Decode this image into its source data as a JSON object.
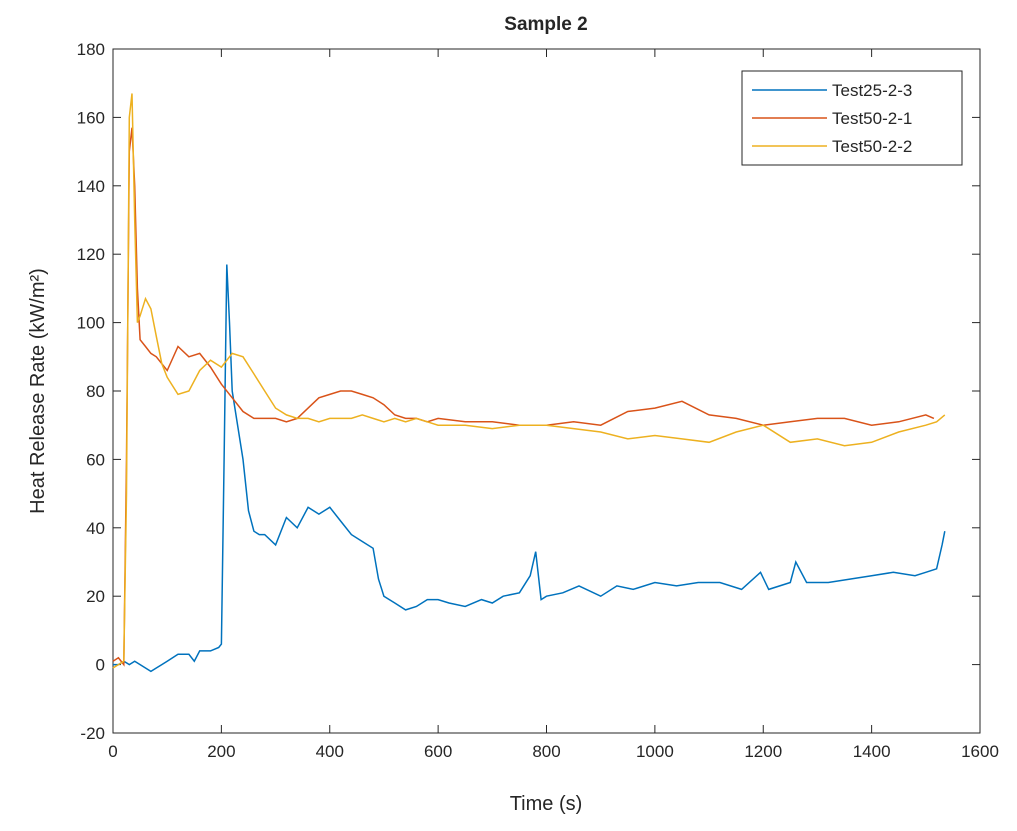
{
  "chart_data": {
    "type": "line",
    "title": "Sample 2",
    "xlabel": "Time (s)",
    "ylabel": "Heat Release Rate (kW/m²)",
    "xlim": [
      0,
      1600
    ],
    "xticks": [
      0,
      200,
      400,
      600,
      800,
      1000,
      1200,
      1400,
      1600
    ],
    "ylim": [
      -20,
      180
    ],
    "yticks": [
      -20,
      0,
      20,
      40,
      60,
      80,
      100,
      120,
      140,
      160,
      180
    ],
    "legend": "upper-right",
    "series": [
      {
        "name": "Test25-2-3",
        "color": "#0072BD",
        "x": [
          0,
          10,
          20,
          30,
          40,
          50,
          60,
          70,
          80,
          90,
          100,
          120,
          140,
          150,
          160,
          180,
          195,
          200,
          205,
          210,
          215,
          220,
          230,
          240,
          250,
          260,
          270,
          280,
          300,
          320,
          340,
          360,
          380,
          400,
          420,
          440,
          460,
          480,
          490,
          500,
          520,
          540,
          560,
          580,
          600,
          620,
          650,
          680,
          700,
          720,
          750,
          770,
          780,
          790,
          800,
          830,
          860,
          900,
          930,
          960,
          1000,
          1040,
          1080,
          1120,
          1160,
          1195,
          1210,
          1250,
          1260,
          1280,
          1320,
          1360,
          1400,
          1440,
          1480,
          1500,
          1520,
          1530,
          1535
        ],
        "values": [
          0,
          0,
          1,
          0,
          1,
          0,
          -1,
          -2,
          -1,
          0,
          1,
          3,
          3,
          1,
          4,
          4,
          5,
          6,
          60,
          117,
          100,
          80,
          70,
          60,
          45,
          39,
          38,
          38,
          35,
          43,
          40,
          46,
          44,
          46,
          42,
          38,
          36,
          34,
          25,
          20,
          18,
          16,
          17,
          19,
          19,
          18,
          17,
          19,
          18,
          20,
          21,
          26,
          33,
          19,
          20,
          21,
          23,
          20,
          23,
          22,
          24,
          23,
          24,
          24,
          22,
          27,
          22,
          24,
          30,
          24,
          24,
          25,
          26,
          27,
          26,
          27,
          28,
          35,
          39
        ]
      },
      {
        "name": "Test50-2-1",
        "color": "#D95319",
        "x": [
          0,
          10,
          20,
          25,
          30,
          35,
          40,
          45,
          50,
          60,
          70,
          80,
          100,
          120,
          140,
          160,
          180,
          200,
          220,
          240,
          260,
          280,
          300,
          320,
          340,
          360,
          380,
          400,
          420,
          440,
          460,
          480,
          500,
          520,
          540,
          560,
          580,
          600,
          650,
          700,
          750,
          800,
          850,
          900,
          950,
          1000,
          1050,
          1100,
          1150,
          1200,
          1250,
          1300,
          1350,
          1400,
          1450,
          1500,
          1515
        ],
        "values": [
          1,
          2,
          0,
          60,
          150,
          157,
          140,
          110,
          95,
          93,
          91,
          90,
          86,
          93,
          90,
          91,
          87,
          82,
          78,
          74,
          72,
          72,
          72,
          71,
          72,
          75,
          78,
          79,
          80,
          80,
          79,
          78,
          76,
          73,
          72,
          72,
          71,
          72,
          71,
          71,
          70,
          70,
          71,
          70,
          74,
          75,
          77,
          73,
          72,
          70,
          71,
          72,
          72,
          70,
          71,
          73,
          72
        ]
      },
      {
        "name": "Test50-2-2",
        "color": "#EDB120",
        "x": [
          0,
          10,
          20,
          25,
          30,
          35,
          40,
          45,
          50,
          60,
          70,
          80,
          90,
          100,
          120,
          140,
          160,
          180,
          200,
          220,
          240,
          260,
          280,
          300,
          320,
          340,
          360,
          380,
          400,
          420,
          440,
          460,
          480,
          500,
          520,
          540,
          560,
          580,
          600,
          650,
          700,
          750,
          800,
          850,
          900,
          950,
          1000,
          1050,
          1100,
          1150,
          1200,
          1250,
          1300,
          1350,
          1400,
          1450,
          1500,
          1520,
          1535
        ],
        "values": [
          -1,
          0,
          1,
          50,
          160,
          167,
          130,
          100,
          102,
          107,
          104,
          96,
          88,
          84,
          79,
          80,
          86,
          89,
          87,
          91,
          90,
          85,
          80,
          75,
          73,
          72,
          72,
          71,
          72,
          72,
          72,
          73,
          72,
          71,
          72,
          71,
          72,
          71,
          70,
          70,
          69,
          70,
          70,
          69,
          68,
          66,
          67,
          66,
          65,
          68,
          70,
          65,
          66,
          64,
          65,
          68,
          70,
          71,
          73
        ]
      }
    ]
  }
}
